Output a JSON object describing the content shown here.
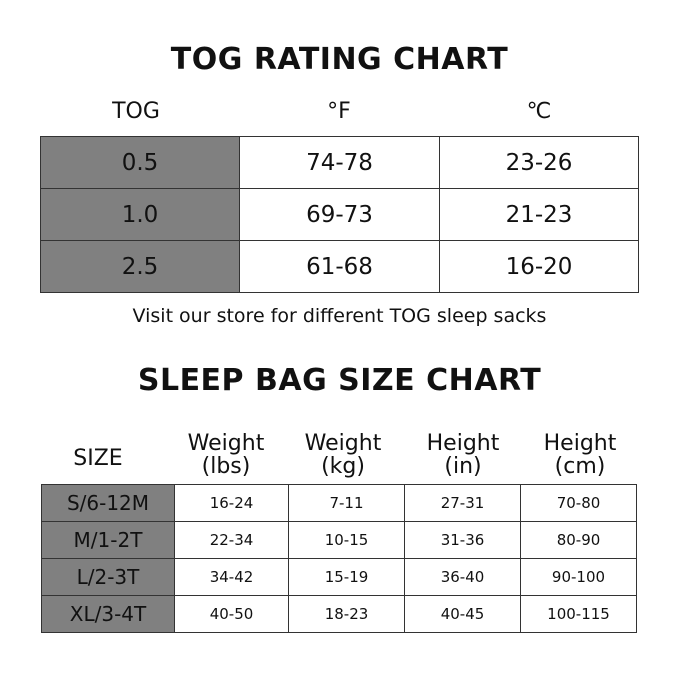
{
  "tog_chart": {
    "title": "TOG RATING CHART",
    "headers": [
      "TOG",
      "°F",
      "℃"
    ],
    "rows": [
      [
        "0.5",
        "74-78",
        "23-26"
      ],
      [
        "1.0",
        "69-73",
        "21-23"
      ],
      [
        "2.5",
        "61-68",
        "16-20"
      ]
    ],
    "note": "Visit our store for different TOG sleep sacks"
  },
  "size_chart": {
    "title": "SLEEP BAG SIZE CHART",
    "headers": [
      {
        "l1": "SIZE",
        "l2": ""
      },
      {
        "l1": "Weight",
        "l2": "(lbs)"
      },
      {
        "l1": "Weight",
        "l2": "(kg)"
      },
      {
        "l1": "Height",
        "l2": "(in)"
      },
      {
        "l1": "Height",
        "l2": "(cm)"
      }
    ],
    "rows": [
      [
        "S/6-12M",
        "16-24",
        "7-11",
        "27-31",
        "70-80"
      ],
      [
        "M/1-2T",
        "22-34",
        "10-15",
        "31-36",
        "80-90"
      ],
      [
        "L/2-3T",
        "34-42",
        "15-19",
        "36-40",
        "90-100"
      ],
      [
        "XL/3-4T",
        "40-50",
        "18-23",
        "40-45",
        "100-115"
      ]
    ]
  },
  "colors": {
    "key_column": "#808080",
    "border": "#333333"
  }
}
